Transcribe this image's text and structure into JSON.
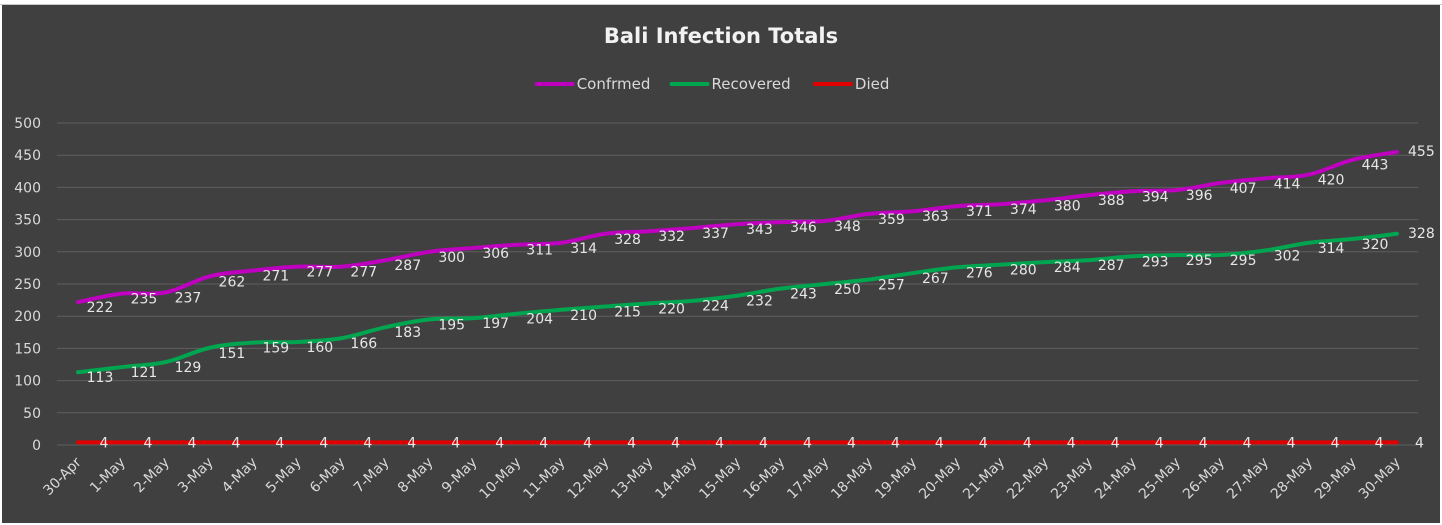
{
  "chart_data": {
    "type": "line",
    "title": "Bali Infection Totals",
    "xlabel": "",
    "ylabel": "",
    "ylim": [
      0,
      500
    ],
    "yticks": [
      0,
      50,
      100,
      150,
      200,
      250,
      300,
      350,
      400,
      450,
      500
    ],
    "grid": true,
    "legend_position": "top",
    "background": "#404040",
    "categories": [
      "30-Apr",
      "1-May",
      "2-May",
      "3-May",
      "4-May",
      "5-May",
      "6-May",
      "7-May",
      "8-May",
      "9-May",
      "10-May",
      "11-May",
      "12-May",
      "13-May",
      "14-May",
      "15-May",
      "16-May",
      "17-May",
      "18-May",
      "19-May",
      "20-May",
      "21-May",
      "22-May",
      "23-May",
      "24-May",
      "25-May",
      "26-May",
      "27-May",
      "28-May",
      "29-May",
      "30-May"
    ],
    "series": [
      {
        "name": "Confrmed",
        "color": "#c000c0",
        "values": [
          222,
          235,
          237,
          262,
          271,
          277,
          277,
          287,
          300,
          306,
          311,
          314,
          328,
          332,
          337,
          343,
          346,
          348,
          359,
          363,
          371,
          374,
          380,
          388,
          394,
          396,
          407,
          414,
          420,
          443,
          455
        ]
      },
      {
        "name": "Recovered",
        "color": "#00a550",
        "values": [
          113,
          121,
          129,
          151,
          159,
          160,
          166,
          183,
          195,
          197,
          204,
          210,
          215,
          220,
          224,
          232,
          243,
          250,
          257,
          267,
          276,
          280,
          284,
          287,
          293,
          295,
          295,
          302,
          314,
          320,
          328
        ]
      },
      {
        "name": "Died",
        "color": "#e00000",
        "values": [
          4,
          4,
          4,
          4,
          4,
          4,
          4,
          4,
          4,
          4,
          4,
          4,
          4,
          4,
          4,
          4,
          4,
          4,
          4,
          4,
          4,
          4,
          4,
          4,
          4,
          4,
          4,
          4,
          4,
          4,
          4
        ]
      }
    ]
  }
}
